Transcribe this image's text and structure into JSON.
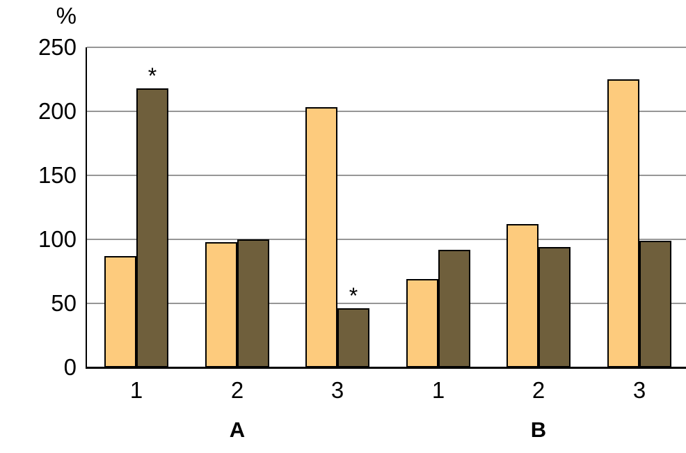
{
  "chart_data": {
    "type": "bar",
    "title": "",
    "xlabel": "",
    "ylabel": "%",
    "ylim": [
      0,
      250
    ],
    "yticks": [
      0,
      50,
      100,
      150,
      200,
      250
    ],
    "grid": true,
    "legend": "none",
    "categories": [
      "1",
      "2",
      "3",
      "1",
      "2",
      "3"
    ],
    "group_sections": [
      {
        "label": "A",
        "from": 0,
        "to": 2
      },
      {
        "label": "B",
        "from": 3,
        "to": 5
      }
    ],
    "series": [
      {
        "name": "light-bars",
        "color": "#FDCB7D",
        "values": [
          87,
          98,
          203,
          69,
          112,
          225
        ]
      },
      {
        "name": "dark-bars",
        "color": "#6F5F3C",
        "values": [
          218,
          100,
          46,
          92,
          94,
          99
        ]
      }
    ],
    "annotations": [
      {
        "text": "*",
        "series": 1,
        "group": 0
      },
      {
        "text": "*",
        "series": 1,
        "group": 2
      }
    ]
  },
  "colors": {
    "background": "#FFFFFF",
    "gridline": "#969696",
    "axis": "#000000",
    "bar_border": "#000000",
    "series_light": "#FDCB7D",
    "series_dark": "#6F5F3C"
  }
}
